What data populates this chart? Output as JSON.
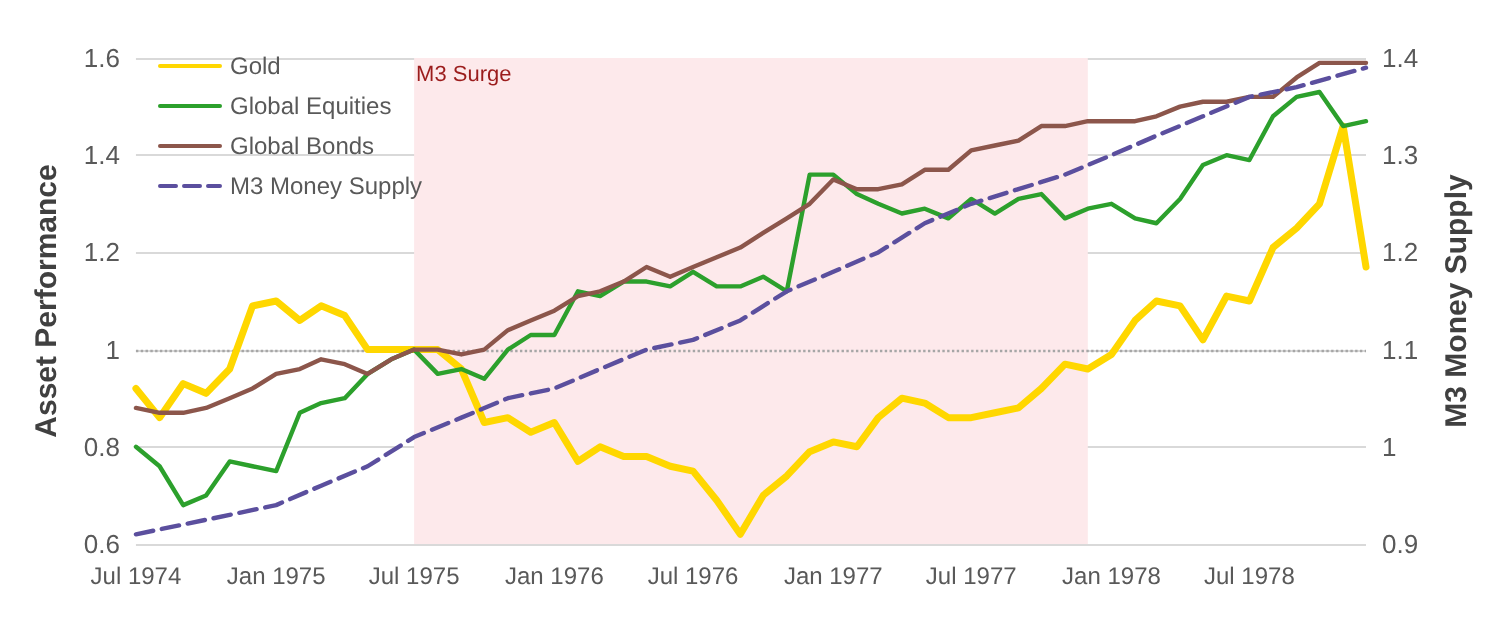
{
  "chart_data": {
    "type": "line",
    "ylabel": "Asset Performance",
    "y2label": "M3 Money Supply",
    "x": [
      "1974-07",
      "1974-08",
      "1974-09",
      "1974-10",
      "1974-11",
      "1974-12",
      "1975-01",
      "1975-02",
      "1975-03",
      "1975-04",
      "1975-05",
      "1975-06",
      "1975-07",
      "1975-08",
      "1975-09",
      "1975-10",
      "1975-11",
      "1975-12",
      "1976-01",
      "1976-02",
      "1976-03",
      "1976-04",
      "1976-05",
      "1976-06",
      "1976-07",
      "1976-08",
      "1976-09",
      "1976-10",
      "1976-11",
      "1976-12",
      "1977-01",
      "1977-02",
      "1977-03",
      "1977-04",
      "1977-05",
      "1977-06",
      "1977-07",
      "1977-08",
      "1977-09",
      "1977-10",
      "1977-11",
      "1977-12",
      "1978-01",
      "1978-02",
      "1978-03",
      "1978-04",
      "1978-05",
      "1978-06",
      "1978-07",
      "1978-08",
      "1978-09",
      "1978-10",
      "1978-11",
      "1978-12"
    ],
    "series": [
      {
        "name": "Gold",
        "color": "#ffd700",
        "values": [
          0.92,
          0.86,
          0.93,
          0.91,
          0.96,
          1.09,
          1.1,
          1.06,
          1.09,
          1.07,
          1.0,
          1.0,
          1.0,
          1.0,
          0.96,
          0.85,
          0.86,
          0.83,
          0.85,
          0.77,
          0.8,
          0.78,
          0.78,
          0.76,
          0.75,
          0.69,
          0.62,
          0.7,
          0.74,
          0.79,
          0.81,
          0.8,
          0.86,
          0.9,
          0.89,
          0.86,
          0.86,
          0.87,
          0.88,
          0.92,
          0.97,
          0.96,
          0.99,
          1.06,
          1.1,
          1.09,
          1.02,
          1.11,
          1.1,
          1.21,
          1.25,
          1.3,
          1.46,
          1.17
        ]
      },
      {
        "name": "Global Equities",
        "color": "#2ca02c",
        "values": [
          0.8,
          0.76,
          0.68,
          0.7,
          0.77,
          0.76,
          0.75,
          0.87,
          0.89,
          0.9,
          0.95,
          0.98,
          1.0,
          0.95,
          0.96,
          0.94,
          1.0,
          1.03,
          1.03,
          1.12,
          1.11,
          1.14,
          1.14,
          1.13,
          1.16,
          1.13,
          1.13,
          1.15,
          1.12,
          1.36,
          1.36,
          1.32,
          1.3,
          1.28,
          1.29,
          1.27,
          1.31,
          1.28,
          1.31,
          1.32,
          1.27,
          1.29,
          1.3,
          1.27,
          1.26,
          1.31,
          1.38,
          1.4,
          1.39,
          1.48,
          1.52,
          1.53,
          1.46,
          1.47
        ]
      },
      {
        "name": "Global Bonds",
        "color": "#8c564b",
        "values": [
          0.88,
          0.87,
          0.87,
          0.88,
          0.9,
          0.92,
          0.95,
          0.96,
          0.98,
          0.97,
          0.95,
          0.98,
          1.0,
          1.0,
          0.99,
          1.0,
          1.04,
          1.06,
          1.08,
          1.11,
          1.12,
          1.14,
          1.17,
          1.15,
          1.17,
          1.19,
          1.21,
          1.24,
          1.27,
          1.3,
          1.35,
          1.33,
          1.33,
          1.34,
          1.37,
          1.37,
          1.41,
          1.42,
          1.43,
          1.46,
          1.46,
          1.47,
          1.47,
          1.47,
          1.48,
          1.5,
          1.51,
          1.51,
          1.52,
          1.52,
          1.56,
          1.59,
          1.59,
          1.59
        ]
      },
      {
        "name": "M3 Money Supply",
        "color": "#5b4f9e",
        "axis": "y2",
        "line_style": "dashed",
        "x": [
          "1974-07",
          "1974-09",
          "1974-11",
          "1975-01",
          "1975-03",
          "1975-05",
          "1975-07",
          "1975-09",
          "1975-11",
          "1976-01",
          "1976-03",
          "1976-05",
          "1976-07",
          "1976-09",
          "1976-11",
          "1977-01",
          "1977-03",
          "1977-05",
          "1977-07",
          "1977-11",
          "1978-01",
          "1978-03",
          "1978-05",
          "1978-07",
          "1978-09",
          "1978-12"
        ],
        "values": [
          0.91,
          0.92,
          0.93,
          0.94,
          0.96,
          0.98,
          1.01,
          1.03,
          1.05,
          1.06,
          1.08,
          1.1,
          1.11,
          1.13,
          1.16,
          1.18,
          1.2,
          1.23,
          1.25,
          1.28,
          1.3,
          1.32,
          1.34,
          1.36,
          1.37,
          1.39
        ]
      }
    ],
    "xlim": [
      "1974-07",
      "1978-12"
    ],
    "xticks": [
      {
        "value": "1974-07",
        "label": "Jul 1974"
      },
      {
        "value": "1975-01",
        "label": "Jan 1975"
      },
      {
        "value": "1975-07",
        "label": "Jul 1975"
      },
      {
        "value": "1976-01",
        "label": "Jan 1976"
      },
      {
        "value": "1976-07",
        "label": "Jul 1976"
      },
      {
        "value": "1977-01",
        "label": "Jan 1977"
      },
      {
        "value": "1977-07",
        "label": "Jul 1977"
      },
      {
        "value": "1978-01",
        "label": "Jan 1978"
      },
      {
        "value": "1978-07",
        "label": "Jul 1978"
      }
    ],
    "ylim": [
      0.6,
      1.6
    ],
    "yticks": [
      0.6,
      0.8,
      1,
      1.2,
      1.4,
      1.6
    ],
    "y2lim": [
      0.9,
      1.4
    ],
    "y2ticks": [
      0.9,
      1,
      1.1,
      1.2,
      1.3,
      1.4
    ],
    "ref_lines": [
      {
        "axis": "y",
        "value": 1,
        "color": "#a6a6a6",
        "line_style": "dotted"
      }
    ],
    "bands": [
      {
        "axis": "x",
        "from": "1975-07",
        "to": "1977-12",
        "label": "M3 Surge",
        "color": "#fde9eb"
      }
    ],
    "grid": "y",
    "legend": "top left",
    "marker": "none",
    "line_style": "solid"
  }
}
